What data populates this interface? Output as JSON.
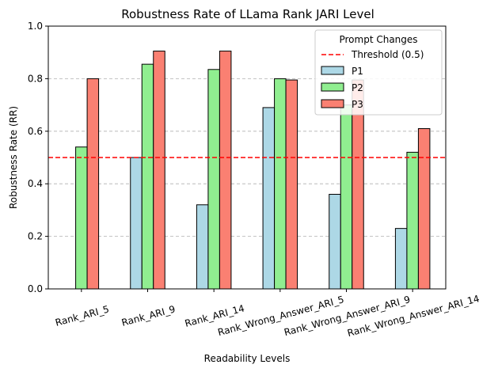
{
  "chart_data": {
    "type": "bar",
    "title": "Robustness Rate of LLama Rank JARI Level",
    "xlabel": "Readability Levels",
    "ylabel": "Robustness Rate (RR)",
    "ylim": [
      0,
      1.0
    ],
    "yticks": [
      "0.0",
      "0.2",
      "0.4",
      "0.6",
      "0.8",
      "1.0"
    ],
    "grid": "horizontal-dashed",
    "categories": [
      "Rank_ARI_5",
      "Rank_ARI_9",
      "Rank_ARI_14",
      "Rank_Wrong_Answer_ARI_5",
      "Rank_Wrong_Answer_ARI_9",
      "Rank_Wrong_Answer_ARI_14"
    ],
    "series": [
      {
        "name": "P1",
        "color": "#add8e6",
        "values": [
          0.0,
          0.5,
          0.32,
          0.69,
          0.36,
          0.23
        ]
      },
      {
        "name": "P2",
        "color": "#90ee90",
        "values": [
          0.54,
          0.855,
          0.835,
          0.8,
          0.7,
          0.52
        ]
      },
      {
        "name": "P3",
        "color": "#fa8072",
        "values": [
          0.8,
          0.905,
          0.905,
          0.795,
          0.795,
          0.61
        ]
      }
    ],
    "threshold": {
      "label": "Threshold (0.5)",
      "value": 0.5,
      "color": "#ff0000"
    },
    "legend": {
      "title": "Prompt Changes",
      "placement": "top-right"
    }
  }
}
